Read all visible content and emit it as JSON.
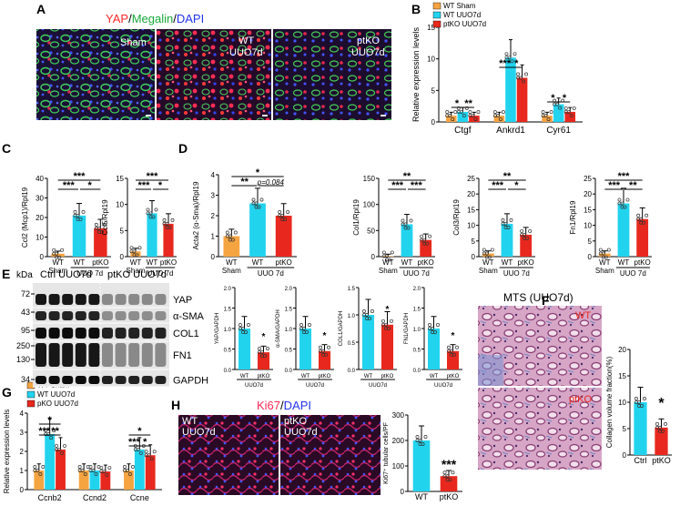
{
  "panel_letters": [
    "A",
    "B",
    "C",
    "D",
    "E",
    "F",
    "G",
    "H"
  ],
  "colors": {
    "sham": "#f5a442",
    "wt": "#22d3ee",
    "ptko": "#e8281e",
    "yap": "#ff2a2a",
    "megalin": "#22cc44",
    "dapi": "#3344ff",
    "ki67": "#ff3366"
  },
  "panelA": {
    "title_yap": "YAP",
    "title_sep1": "/",
    "title_megalin": "Megalin",
    "title_sep2": "/",
    "title_dapi": "DAPI",
    "img1_label": "Sham",
    "img2_label_l1": "WT",
    "img2_label_l2": "UUO7d",
    "img3_label_l1": "ptKO",
    "img3_label_l2": "UUO7d"
  },
  "legend_B": [
    "WT Sham",
    "WT UUO7d",
    "ptKO UUO7d"
  ],
  "legend_G": [
    "WT Sham",
    "WT UUO7d",
    "pKO UUO7d"
  ],
  "chart_data": [
    {
      "id": "B",
      "type": "bar",
      "ylabel": "Relative expression levels",
      "ylim": [
        0,
        15
      ],
      "yticks": [
        "0",
        "5",
        "10",
        "15"
      ],
      "categories": [
        "Ctgf",
        "Ankrd1",
        "Cyr61"
      ],
      "series": [
        {
          "name": "WT Sham",
          "values": [
            1,
            1,
            1
          ]
        },
        {
          "name": "WT UUO7d",
          "values": [
            1.6,
            10.2,
            2.8
          ]
        },
        {
          "name": "ptKO UUO7d",
          "values": [
            1,
            7,
            1.6
          ]
        }
      ],
      "annotations": [
        "*",
        "**",
        "***",
        "*",
        "*",
        "*"
      ]
    },
    {
      "id": "C1",
      "type": "bar",
      "ylabel": "Ccl2 (Mcp1)/Rpl19",
      "ylim": [
        0,
        40
      ],
      "yticks": [
        "0",
        "10",
        "20",
        "30",
        "40"
      ],
      "categories": [
        "WT",
        "WT",
        "ptKO"
      ],
      "group_labels": [
        "Sham",
        "UUO 7d"
      ],
      "values": [
        1.5,
        21,
        14.5
      ],
      "annotations": [
        "***",
        "***",
        "*"
      ]
    },
    {
      "id": "C2",
      "type": "bar",
      "ylabel": "Ccl5/Rpl19",
      "ylim": [
        0,
        15
      ],
      "yticks": [
        "0",
        "5",
        "10",
        "15"
      ],
      "categories": [
        "WT",
        "WT",
        "ptKO"
      ],
      "group_labels": [
        "Sham",
        "UUO 7d"
      ],
      "values": [
        1,
        8.3,
        6.3
      ],
      "annotations": [
        "***",
        "***",
        "*"
      ]
    },
    {
      "id": "D1",
      "type": "bar",
      "ylabel": "Acta2 (α-Sma)/Rpl19",
      "ylim": [
        0,
        4
      ],
      "yticks": [
        "0",
        "1",
        "2",
        "3",
        "4"
      ],
      "categories": [
        "WT",
        "WT",
        "ptKO"
      ],
      "group_labels": [
        "Sham",
        "UUO 7d"
      ],
      "values": [
        1,
        2.6,
        2
      ],
      "annotations": [
        "*",
        "**",
        "p=0.084"
      ]
    },
    {
      "id": "D2",
      "type": "bar",
      "ylabel": "Col1/Rpl19",
      "ylim": [
        0,
        150
      ],
      "yticks": [
        "0",
        "50",
        "100",
        "150"
      ],
      "categories": [
        "WT",
        "WT",
        "ptKO"
      ],
      "group_labels": [
        "Sham",
        "UUO 7d"
      ],
      "values": [
        1,
        62,
        32
      ],
      "annotations": [
        "**",
        "***",
        "***"
      ]
    },
    {
      "id": "D3",
      "type": "bar",
      "ylabel": "Col3/Rpl19",
      "ylim": [
        0,
        25
      ],
      "yticks": [
        "0",
        "5",
        "10",
        "15",
        "20",
        "25"
      ],
      "categories": [
        "WT",
        "WT",
        "ptKO"
      ],
      "group_labels": [
        "Sham",
        "UUO 7d"
      ],
      "values": [
        1,
        10.5,
        7
      ],
      "annotations": [
        "**",
        "***",
        "*"
      ]
    },
    {
      "id": "D4",
      "type": "bar",
      "ylabel": "Fn1/Rpl19",
      "ylim": [
        0,
        25
      ],
      "yticks": [
        "0",
        "5",
        "10",
        "15",
        "20",
        "25"
      ],
      "categories": [
        "WT",
        "WT",
        "ptKO"
      ],
      "group_labels": [
        "Sham",
        "UUO 7d"
      ],
      "values": [
        1,
        17,
        12
      ],
      "annotations": [
        "***",
        "***",
        "**"
      ]
    },
    {
      "id": "E1",
      "type": "bar",
      "ylabel": "YAP/GAPDH",
      "ylim": [
        0,
        2.0
      ],
      "yticks": [
        "0.0",
        "0.5",
        "1.0",
        "1.5",
        "2.0"
      ],
      "categories": [
        "WT",
        "ptKO"
      ],
      "group_labels": [
        "UUO7d"
      ],
      "values": [
        1.0,
        0.42
      ],
      "annotations": [
        "*"
      ]
    },
    {
      "id": "E2",
      "type": "bar",
      "ylabel": "α-SMA/GAPDH",
      "ylim": [
        0,
        2.0
      ],
      "yticks": [
        "0.0",
        "0.5",
        "1.0",
        "1.5",
        "2.0"
      ],
      "categories": [
        "WT",
        "ptKO"
      ],
      "group_labels": [
        "UUO7d"
      ],
      "values": [
        1.0,
        0.45
      ],
      "annotations": [
        "*"
      ]
    },
    {
      "id": "E3",
      "type": "bar",
      "ylabel": "COL1/GAPDH",
      "ylim": [
        0,
        1.5
      ],
      "yticks": [
        "0.0",
        "0.5",
        "1.0",
        "1.5"
      ],
      "categories": [
        "WT",
        "ptKO"
      ],
      "group_labels": [
        "UUO7d"
      ],
      "values": [
        1.0,
        0.82
      ],
      "annotations": [
        "*"
      ]
    },
    {
      "id": "E4",
      "type": "bar",
      "ylabel": "FN1/GAPDH",
      "ylim": [
        0,
        2.0
      ],
      "yticks": [
        "0.0",
        "0.5",
        "1.0",
        "1.5",
        "2.0"
      ],
      "categories": [
        "WT",
        "ptKO"
      ],
      "group_labels": [
        "UUO7d"
      ],
      "values": [
        1.0,
        0.45
      ],
      "annotations": [
        "*"
      ]
    },
    {
      "id": "F",
      "type": "bar",
      "ylabel": "Collagen volume fraction(%)",
      "ylim": [
        0,
        20
      ],
      "yticks": [
        "0",
        "5",
        "10",
        "15",
        "20"
      ],
      "categories": [
        "Ctrl",
        "ptKO"
      ],
      "values": [
        10,
        5.2
      ],
      "annotations": [
        "*"
      ]
    },
    {
      "id": "G",
      "type": "bar",
      "ylabel": "Relative expression levels",
      "ylim": [
        0,
        4
      ],
      "yticks": [
        "0",
        "1",
        "2",
        "3",
        "4"
      ],
      "categories": [
        "Ccnb2",
        "Ccnd2",
        "Ccne"
      ],
      "series": [
        {
          "name": "WT Sham",
          "values": [
            1,
            1,
            1
          ]
        },
        {
          "name": "WT UUO7d",
          "values": [
            2.9,
            1,
            2.1
          ]
        },
        {
          "name": "pKO UUO7d",
          "values": [
            2.1,
            0.95,
            1.8
          ]
        }
      ],
      "annotations": [
        "*",
        "***",
        "**",
        "*",
        "***",
        "*"
      ]
    },
    {
      "id": "H",
      "type": "bar",
      "ylabel": "Ki67⁺ tubular cells/PF",
      "ylim": [
        0,
        300
      ],
      "yticks": [
        "0",
        "100",
        "200",
        "300"
      ],
      "categories": [
        "WT",
        "ptKO"
      ],
      "values": [
        200,
        60
      ],
      "annotations": [
        "***"
      ]
    }
  ],
  "blot_E": {
    "kda": "kDa",
    "group1": "Ctrl UUO7d",
    "group2": "ptKO UUO7d",
    "markers": [
      "72",
      "43",
      "95",
      "250",
      "130",
      "34"
    ],
    "bands": [
      "YAP",
      "α-SMA",
      "COL1",
      "FN1",
      "GAPDH"
    ]
  },
  "panelF": {
    "title": "MTS (UUO7d)",
    "img1_label": "WT",
    "img2_label": "ptKO"
  },
  "panelH": {
    "title_ki": "Ki67",
    "title_sep": "/",
    "title_dapi": "DAPI",
    "img1_l1": "WT",
    "img1_l2": "UUO7d",
    "img2_l1": "ptKO",
    "img2_l2": "UUO7d"
  }
}
